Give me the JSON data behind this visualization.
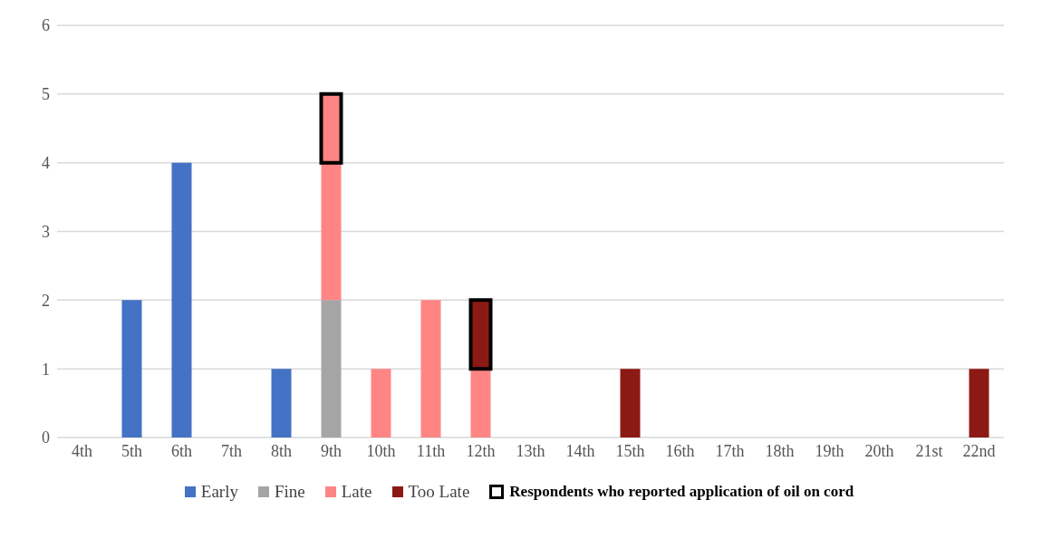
{
  "chart_data": {
    "type": "bar",
    "stacked": true,
    "categories": [
      "4th",
      "5th",
      "6th",
      "7th",
      "8th",
      "9th",
      "10th",
      "11th",
      "12th",
      "13th",
      "14th",
      "15th",
      "16th",
      "17th",
      "18th",
      "19th",
      "20th",
      "21st",
      "22nd"
    ],
    "series": [
      {
        "name": "Early",
        "color": "#4472c4",
        "values": [
          0,
          2,
          4,
          0,
          1,
          0,
          0,
          0,
          0,
          0,
          0,
          0,
          0,
          0,
          0,
          0,
          0,
          0,
          0
        ]
      },
      {
        "name": "Fine",
        "color": "#a5a5a5",
        "values": [
          0,
          0,
          0,
          0,
          0,
          2,
          0,
          0,
          0,
          0,
          0,
          0,
          0,
          0,
          0,
          0,
          0,
          0,
          0
        ]
      },
      {
        "name": "Late",
        "color": "#ff8585",
        "values": [
          0,
          0,
          0,
          0,
          0,
          2,
          1,
          2,
          1,
          0,
          0,
          0,
          0,
          0,
          0,
          0,
          0,
          0,
          0
        ]
      },
      {
        "name": "Too Late",
        "color": "#8c1a14",
        "values": [
          0,
          0,
          0,
          0,
          0,
          0,
          0,
          0,
          0,
          0,
          0,
          1,
          0,
          0,
          0,
          0,
          0,
          0,
          1
        ]
      },
      {
        "name": "Respondents who reported application of oil on cord",
        "color": "#000000",
        "colors": [
          null,
          null,
          null,
          null,
          null,
          "#ff8585",
          null,
          null,
          "#8c1a14",
          null,
          null,
          null,
          null,
          null,
          null,
          null,
          null,
          null,
          null
        ],
        "values": [
          0,
          0,
          0,
          0,
          0,
          1,
          0,
          0,
          1,
          0,
          0,
          0,
          0,
          0,
          0,
          0,
          0,
          0,
          0
        ]
      }
    ],
    "ylim": [
      0,
      6
    ],
    "yticks": [
      0,
      1,
      2,
      3,
      4,
      5,
      6
    ],
    "grid": "y",
    "legend": "bottom"
  }
}
